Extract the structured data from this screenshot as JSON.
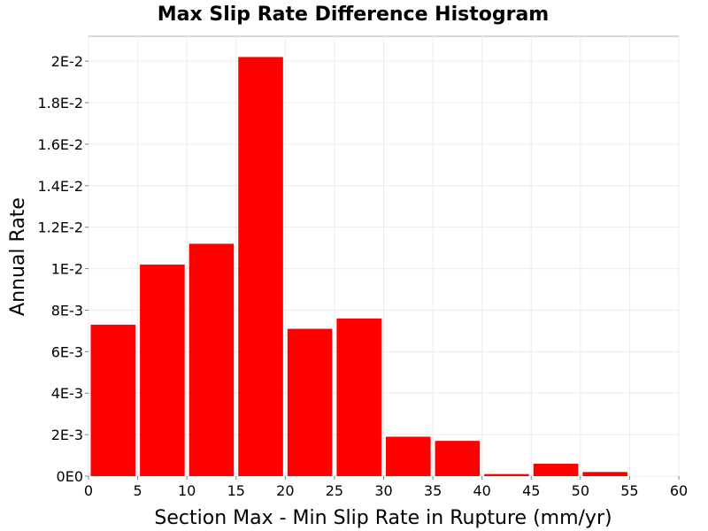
{
  "chart_data": {
    "type": "bar",
    "title": "Max Slip Rate Difference Histogram",
    "xlabel": "Section Max - Min Slip Rate in Rupture (mm/yr)",
    "ylabel": "Annual Rate",
    "xlim": [
      0,
      60
    ],
    "ylim": [
      0,
      0.0212
    ],
    "grid": true,
    "legend": "none",
    "bar_color": "#ff0000",
    "bin_width": 5,
    "x": [
      2.5,
      7.5,
      12.5,
      17.5,
      22.5,
      27.5,
      32.5,
      37.5,
      42.5,
      47.5,
      52.5,
      57.5
    ],
    "values": [
      0.0073,
      0.0102,
      0.0112,
      0.0202,
      0.0071,
      0.0076,
      0.0019,
      0.0017,
      0.0001,
      0.0006,
      0.0002,
      0.0
    ],
    "x_ticks": [
      0,
      5,
      10,
      15,
      20,
      25,
      30,
      35,
      40,
      45,
      50,
      55,
      60
    ],
    "x_tick_labels": [
      "0",
      "5",
      "10",
      "15",
      "20",
      "25",
      "30",
      "35",
      "40",
      "45",
      "50",
      "55",
      "60"
    ],
    "y_ticks": [
      0,
      0.002,
      0.004,
      0.006,
      0.008,
      0.01,
      0.012,
      0.014,
      0.016,
      0.018,
      0.02
    ],
    "y_tick_labels": [
      "0E0",
      "2E-3",
      "4E-3",
      "6E-3",
      "8E-3",
      "1E-2",
      "1.2E-2",
      "1.4E-2",
      "1.6E-2",
      "1.8E-2",
      "2E-2"
    ]
  }
}
